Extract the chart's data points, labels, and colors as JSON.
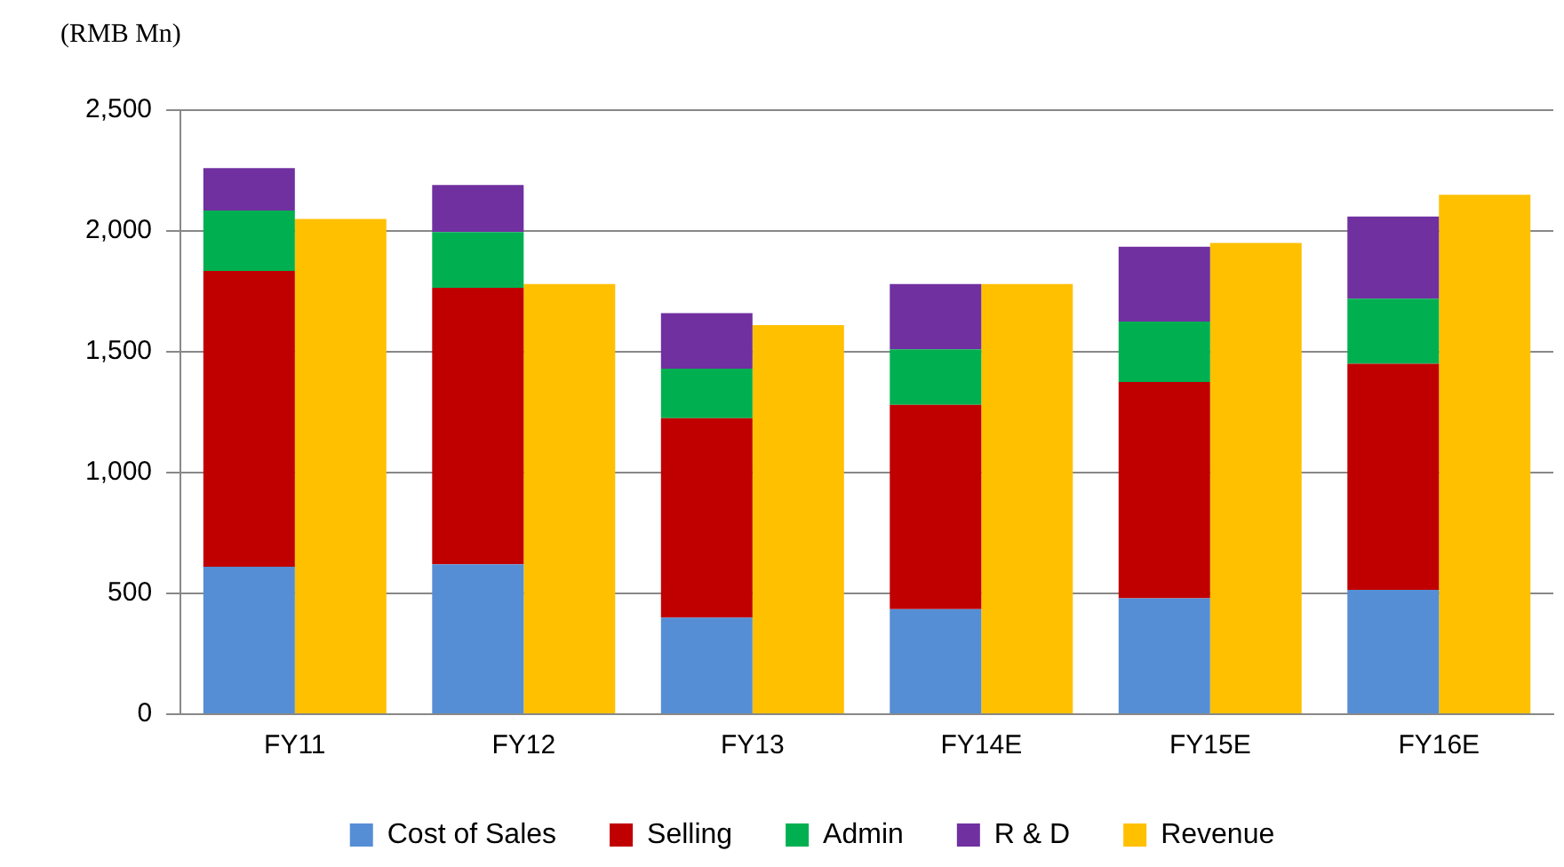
{
  "chart_data": {
    "type": "bar",
    "ylabel": "(RMB Mn)",
    "categories": [
      "FY11",
      "FY12",
      "FY13",
      "FY14E",
      "FY15E",
      "FY16E"
    ],
    "series": [
      {
        "name": "Cost of Sales",
        "color": "#558ed5",
        "values": [
          610,
          620,
          400,
          435,
          480,
          515
        ],
        "base": [
          0,
          0,
          0,
          0,
          0,
          0
        ]
      },
      {
        "name": "Selling",
        "color": "#c00000",
        "values": [
          1225,
          1145,
          825,
          845,
          895,
          935
        ],
        "base": [
          610,
          620,
          400,
          435,
          480,
          515
        ]
      },
      {
        "name": "Admin",
        "color": "#00b050",
        "values": [
          250,
          230,
          205,
          230,
          250,
          270
        ],
        "base": [
          1835,
          1765,
          1225,
          1280,
          1375,
          1450
        ]
      },
      {
        "name": "R & D",
        "color": "#7030a0",
        "values": [
          175,
          195,
          230,
          270,
          310,
          340
        ],
        "base": [
          2085,
          1995,
          1430,
          1510,
          1625,
          1720
        ]
      },
      {
        "name": "Revenue",
        "color": "#ffc000",
        "values": [
          2050,
          1780,
          1610,
          1780,
          1950,
          2150
        ]
      }
    ],
    "ylim": [
      0,
      2500
    ],
    "yticks": [
      {
        "value": 0,
        "label": "0"
      },
      {
        "value": 500,
        "label": "500"
      },
      {
        "value": 1000,
        "label": "1,000"
      },
      {
        "value": 1500,
        "label": "1,500"
      },
      {
        "value": 2000,
        "label": "2,000"
      },
      {
        "value": 2500,
        "label": "2,500"
      }
    ],
    "grid": "y",
    "legend": "bottom"
  }
}
